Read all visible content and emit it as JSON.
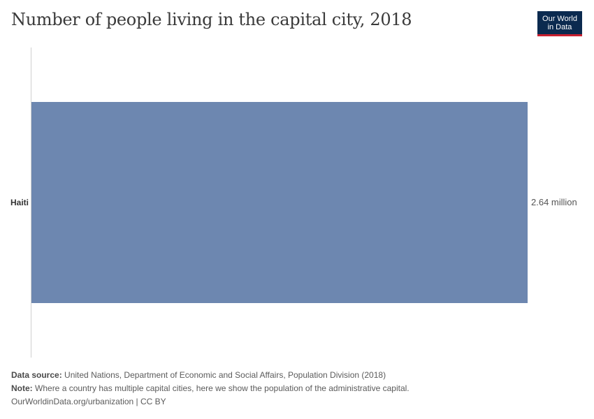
{
  "title": "Number of people living in the capital city, 2018",
  "logo": {
    "line1": "Our World",
    "line2": "in Data"
  },
  "chart_data": {
    "type": "bar",
    "orientation": "horizontal",
    "categories": [
      "Haiti"
    ],
    "values": [
      2640000
    ],
    "value_labels": [
      "2.64 million"
    ],
    "xlim": [
      0,
      2640000
    ],
    "color": "#6d87b0",
    "grid": false
  },
  "footer": {
    "source_label": "Data source:",
    "source_text": "United Nations, Department of Economic and Social Affairs, Population Division (2018)",
    "note_label": "Note:",
    "note_text": "Where a country has multiple capital cities, here we show the population of the administrative capital.",
    "url": "OurWorldinData.org/urbanization | CC BY"
  }
}
